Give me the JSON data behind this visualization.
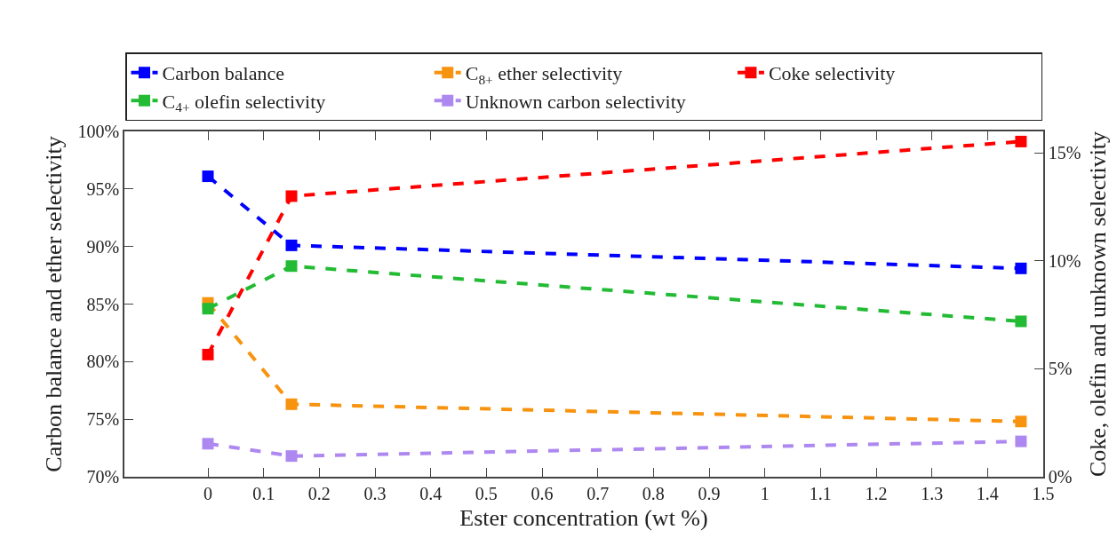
{
  "chart_data": {
    "type": "line",
    "xlabel": "Ester concentration (wt %)",
    "ylabel": "Carbon balance and ether selectivity",
    "y2label": "Coke, olefin and unknown selectivity",
    "x": [
      0,
      0.15,
      1.46
    ],
    "series": [
      {
        "name": "Carbon balance",
        "color": "#0000ff",
        "values": [
          96.1,
          90.1,
          88.1
        ]
      },
      {
        "name": "C$_{4+}$ olefin selectivity",
        "color": "#22bb33",
        "values": [
          84.6,
          88.3,
          83.5
        ]
      },
      {
        "name": "C$_{8+}$ ether selectivity",
        "color": "#f7930f",
        "values": [
          85.1,
          76.3,
          74.8
        ]
      },
      {
        "name": "Unknown carbon selectivity",
        "color": "#ad88f0",
        "values": [
          1.53,
          0.96,
          1.64
        ],
        "axis": "y2"
      },
      {
        "name": "Coke selectivity",
        "color": "#ff0000",
        "values": [
          5.66,
          13.0,
          15.53
        ],
        "axis": "y2"
      }
    ],
    "xlim": [
      -0.15,
      1.5
    ],
    "xticks": [
      0,
      0.1,
      0.2,
      0.3,
      0.4,
      0.5,
      0.6,
      0.7,
      0.8,
      0.9,
      1,
      1.1,
      1.2,
      1.3,
      1.4,
      1.5
    ],
    "ylim": [
      70,
      100
    ],
    "yticks": [
      {
        "value": 70,
        "label": "70%"
      },
      {
        "value": 75,
        "label": "75%"
      },
      {
        "value": 80,
        "label": "80%"
      },
      {
        "value": 85,
        "label": "85%"
      },
      {
        "value": 90,
        "label": "90%"
      },
      {
        "value": 95,
        "label": "95%"
      },
      {
        "value": 100,
        "label": "100%"
      }
    ],
    "y2lim": [
      0,
      16
    ],
    "y2ticks": [
      {
        "value": 0,
        "label": "0%"
      },
      {
        "value": 5,
        "label": "5%"
      },
      {
        "value": 10,
        "label": "10%"
      },
      {
        "value": 15,
        "label": "15%"
      }
    ],
    "legend": "top",
    "marker": "square",
    "line_style": "dashed"
  }
}
